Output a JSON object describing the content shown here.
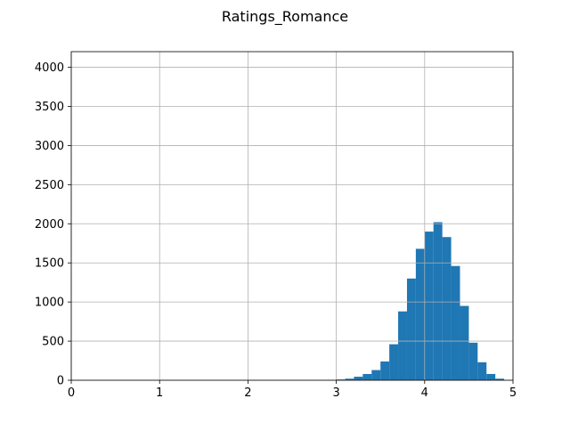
{
  "chart_data": {
    "type": "bar",
    "title": "Ratings_Romance",
    "xlabel": "",
    "ylabel": "",
    "xlim": [
      0,
      5
    ],
    "ylim": [
      0,
      4200
    ],
    "x_ticks": [
      0,
      1,
      2,
      3,
      4,
      5
    ],
    "x_tick_labels": [
      "0",
      "1",
      "2",
      "3",
      "4",
      "5"
    ],
    "y_ticks": [
      0,
      500,
      1000,
      1500,
      2000,
      2500,
      3000,
      3500,
      4000
    ],
    "y_tick_labels": [
      "0",
      "500",
      "1000",
      "1500",
      "2000",
      "2500",
      "3000",
      "3500",
      "4000"
    ],
    "grid": true,
    "bar_color": "#1f77b4",
    "bins": [
      {
        "x0": 2.9,
        "x1": 3.0,
        "count": 5
      },
      {
        "x0": 3.0,
        "x1": 3.1,
        "count": 10
      },
      {
        "x0": 3.1,
        "x1": 3.2,
        "count": 20
      },
      {
        "x0": 3.2,
        "x1": 3.3,
        "count": 45
      },
      {
        "x0": 3.3,
        "x1": 3.4,
        "count": 80
      },
      {
        "x0": 3.4,
        "x1": 3.5,
        "count": 130
      },
      {
        "x0": 3.5,
        "x1": 3.6,
        "count": 240
      },
      {
        "x0": 3.6,
        "x1": 3.7,
        "count": 460
      },
      {
        "x0": 3.7,
        "x1": 3.8,
        "count": 880
      },
      {
        "x0": 3.8,
        "x1": 3.9,
        "count": 1300
      },
      {
        "x0": 3.9,
        "x1": 4.0,
        "count": 1680
      },
      {
        "x0": 4.0,
        "x1": 4.1,
        "count": 1900
      },
      {
        "x0": 4.1,
        "x1": 4.2,
        "count": 2020
      },
      {
        "x0": 4.2,
        "x1": 4.3,
        "count": 1830
      },
      {
        "x0": 4.3,
        "x1": 4.4,
        "count": 1460
      },
      {
        "x0": 4.4,
        "x1": 4.5,
        "count": 950
      },
      {
        "x0": 4.5,
        "x1": 4.6,
        "count": 480
      },
      {
        "x0": 4.6,
        "x1": 4.7,
        "count": 230
      },
      {
        "x0": 4.7,
        "x1": 4.8,
        "count": 80
      },
      {
        "x0": 4.8,
        "x1": 4.9,
        "count": 20
      }
    ]
  }
}
